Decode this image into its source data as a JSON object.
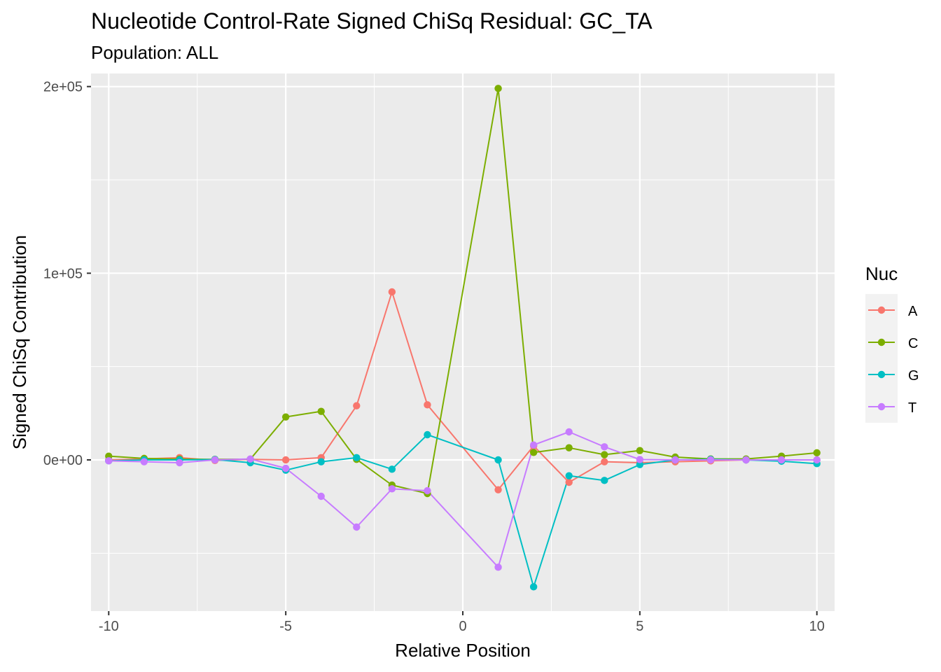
{
  "chart_data": {
    "type": "line",
    "title": "Nucleotide Control-Rate Signed ChiSq Residual: GC_TA",
    "subtitle": "Population: ALL",
    "xlabel": "Relative Position",
    "ylabel": "Signed ChiSq Contribution",
    "xlim": [
      -10.5,
      10.5
    ],
    "ylim": [
      -81000,
      207000
    ],
    "x_ticks": [
      -10,
      -5,
      0,
      5,
      10
    ],
    "x_tick_labels": [
      "-10",
      "-5",
      "0",
      "5",
      "10"
    ],
    "y_ticks": [
      0,
      100000,
      200000
    ],
    "y_tick_labels": [
      "0e+00",
      "1e+05",
      "2e+05"
    ],
    "grid": true,
    "legend": {
      "title": "Nuc",
      "position": "right"
    },
    "x": [
      -10,
      -9,
      -8,
      -7,
      -6,
      -5,
      -4,
      -3,
      -2,
      -1,
      1,
      2,
      3,
      4,
      5,
      6,
      7,
      8,
      9,
      10
    ],
    "series": [
      {
        "name": "A",
        "color": "#F8766D",
        "values": [
          0,
          500,
          1200,
          -300,
          300,
          0,
          1200,
          29000,
          90000,
          29500,
          -16000,
          7500,
          -12000,
          -1000,
          -1500,
          -1000,
          -500,
          0,
          0,
          0
        ]
      },
      {
        "name": "C",
        "color": "#7CAE00",
        "values": [
          2000,
          800,
          400,
          300,
          400,
          23000,
          26000,
          300,
          -13500,
          -18000,
          199000,
          4000,
          6500,
          2800,
          5000,
          1500,
          500,
          500,
          2000,
          3800
        ]
      },
      {
        "name": "G",
        "color": "#00BFC4",
        "values": [
          -500,
          0,
          0,
          200,
          -1500,
          -5500,
          -1000,
          1200,
          -5000,
          13500,
          0,
          -68000,
          -8500,
          -11000,
          -2500,
          0,
          300,
          0,
          -700,
          -2000
        ]
      },
      {
        "name": "T",
        "color": "#C77CFF",
        "values": [
          -500,
          -1000,
          -1500,
          0,
          500,
          -4500,
          -19500,
          -36000,
          -15500,
          -16500,
          -57500,
          8000,
          15000,
          7000,
          200,
          0,
          0,
          0,
          0,
          0
        ]
      }
    ]
  }
}
